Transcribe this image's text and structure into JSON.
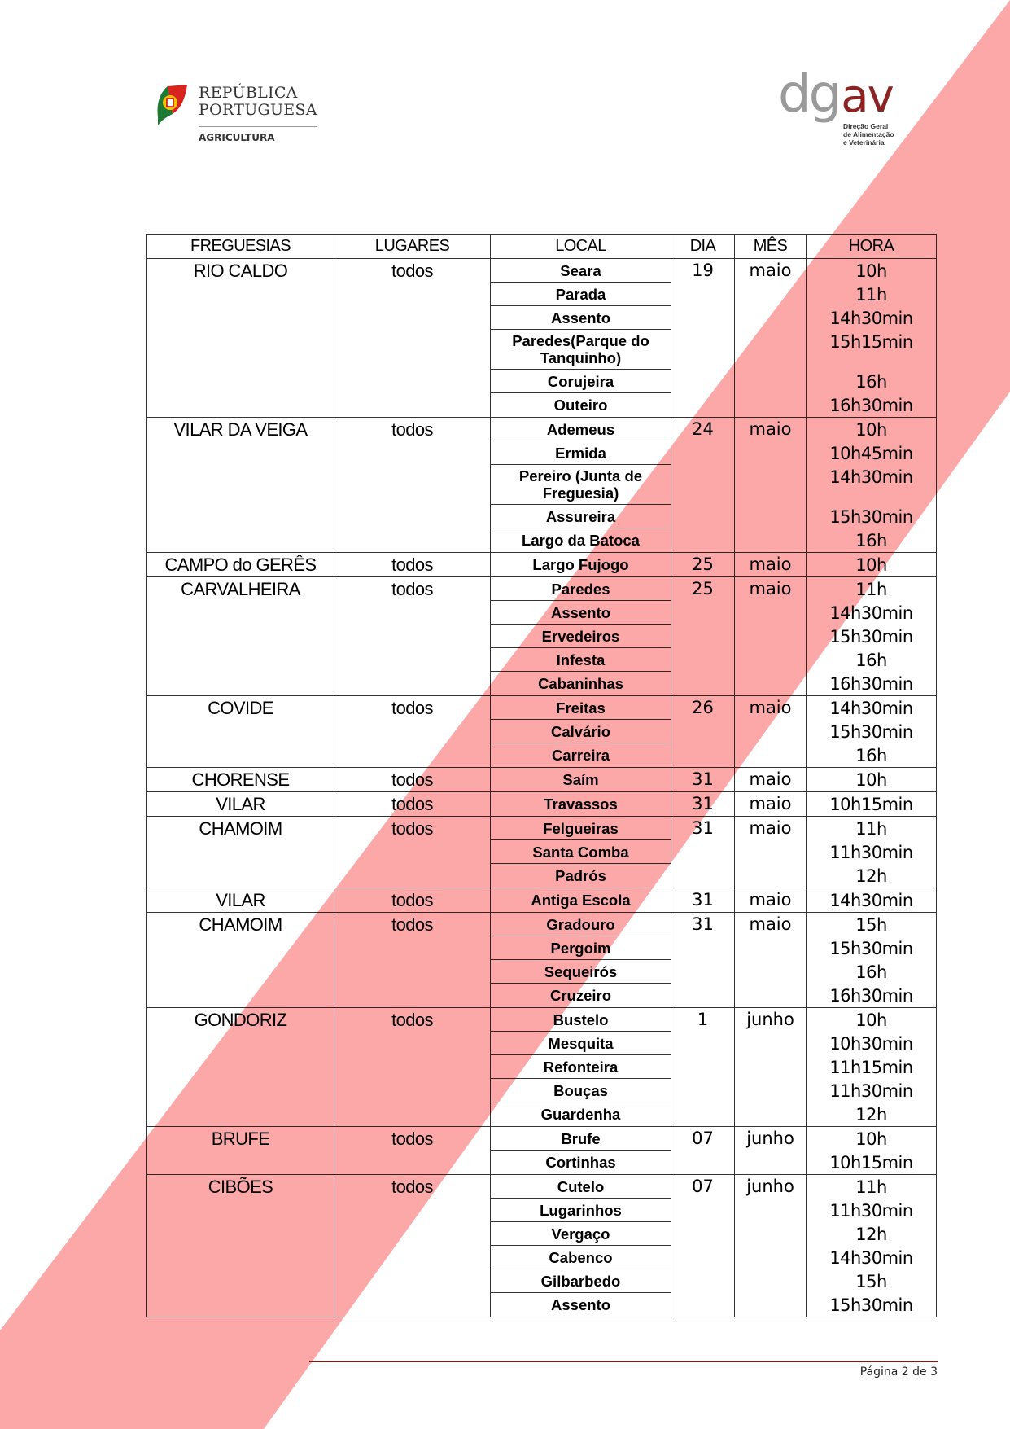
{
  "header": {
    "left_logo": {
      "line1": "REPÚBLICA",
      "line2": "PORTUGUESA",
      "sub": "AGRICULTURA"
    },
    "right_logo": {
      "mark_grey": "dg",
      "mark_red": "av",
      "sub1": "Direção Geral",
      "sub2": "de Alimentação",
      "sub3": "e Veterinária"
    }
  },
  "table": {
    "columns": [
      "FREGUESIAS",
      "LUGARES",
      "LOCAL",
      "DIA",
      "MÊS",
      "HORA"
    ],
    "groups": [
      {
        "freguesia": "RIO CALDO",
        "lugares": "todos",
        "dia": "19",
        "mes": "maio",
        "rows": [
          {
            "local": "Seara",
            "hora": "10h"
          },
          {
            "local": "Parada",
            "hora": "11h"
          },
          {
            "local": "Assento",
            "hora": "14h30min"
          },
          {
            "local": "Paredes(Parque do Tanquinho)",
            "hora": "15h15min",
            "double": true
          },
          {
            "local": "Corujeira",
            "hora": "16h"
          },
          {
            "local": "Outeiro",
            "hora": "16h30min"
          }
        ]
      },
      {
        "freguesia": "VILAR DA VEIGA",
        "lugares": "todos",
        "dia": "24",
        "mes": "maio",
        "rows": [
          {
            "local": "Ademeus",
            "hora": "10h"
          },
          {
            "local": "Ermida",
            "hora": "10h45min"
          },
          {
            "local": "Pereiro (Junta de Freguesia)",
            "hora": "14h30min",
            "double": true
          },
          {
            "local": "Assureira",
            "hora": "15h30min"
          },
          {
            "local": "Largo da Batoca",
            "hora": "16h"
          }
        ]
      },
      {
        "freguesia": "CAMPO do GERÊS",
        "lugares": "todos",
        "dia": "25",
        "mes": "maio",
        "rows": [
          {
            "local": "Largo Fujogo",
            "hora": "10h"
          }
        ]
      },
      {
        "freguesia": "CARVALHEIRA",
        "lugares": "todos",
        "dia": "25",
        "mes": "maio",
        "rows": [
          {
            "local": "Paredes",
            "hora": "11h"
          },
          {
            "local": "Assento",
            "hora": "14h30min"
          },
          {
            "local": "Ervedeiros",
            "hora": "15h30min"
          },
          {
            "local": "Infesta",
            "hora": "16h"
          },
          {
            "local": "Cabaninhas",
            "hora": "16h30min"
          }
        ]
      },
      {
        "freguesia": "COVIDE",
        "lugares": "todos",
        "dia": "26",
        "mes": "maio",
        "rows": [
          {
            "local": "Freitas",
            "hora": "14h30min"
          },
          {
            "local": "Calvário",
            "hora": "15h30min"
          },
          {
            "local": "Carreira",
            "hora": "16h"
          }
        ]
      },
      {
        "freguesia": "CHORENSE",
        "lugares": "todos",
        "dia": "31",
        "mes": "maio",
        "rows": [
          {
            "local": "Saím",
            "hora": "10h"
          }
        ]
      },
      {
        "freguesia": "VILAR",
        "lugares": "todos",
        "dia": "31",
        "mes": "maio",
        "rows": [
          {
            "local": "Travassos",
            "hora": "10h15min"
          }
        ]
      },
      {
        "freguesia": "CHAMOIM",
        "lugares": "todos",
        "dia": "31",
        "mes": "maio",
        "rows": [
          {
            "local": "Felgueiras",
            "hora": "11h"
          },
          {
            "local": "Santa Comba",
            "hora": "11h30min"
          },
          {
            "local": "Padrós",
            "hora": "12h"
          }
        ]
      },
      {
        "freguesia": "VILAR",
        "lugares": "todos",
        "dia": "31",
        "mes": "maio",
        "rows": [
          {
            "local": "Antiga Escola",
            "hora": "14h30min"
          }
        ]
      },
      {
        "freguesia": "CHAMOIM",
        "lugares": "todos",
        "dia": "31",
        "mes": "maio",
        "rows": [
          {
            "local": "Gradouro",
            "hora": "15h"
          },
          {
            "local": "Pergoim",
            "hora": "15h30min"
          },
          {
            "local": "Sequeirós",
            "hora": "16h"
          },
          {
            "local": "Cruzeiro",
            "hora": "16h30min"
          }
        ]
      },
      {
        "freguesia": "GONDORIZ",
        "lugares": "todos",
        "dia": "1",
        "mes": "junho",
        "rows": [
          {
            "local": "Bustelo",
            "hora": "10h"
          },
          {
            "local": "Mesquita",
            "hora": "10h30min"
          },
          {
            "local": "Refonteira",
            "hora": "11h15min"
          },
          {
            "local": "Bouças",
            "hora": "11h30min"
          },
          {
            "local": "Guardenha",
            "hora": "12h"
          }
        ]
      },
      {
        "freguesia": "BRUFE",
        "lugares": "todos",
        "dia": "07",
        "mes": "junho",
        "rows": [
          {
            "local": "Brufe",
            "hora": "10h"
          },
          {
            "local": "Cortinhas",
            "hora": "10h15min"
          }
        ]
      },
      {
        "freguesia": "CIBÕES",
        "lugares": "todos",
        "dia": "07",
        "mes": "junho",
        "rows": [
          {
            "local": "Cutelo",
            "hora": "11h"
          },
          {
            "local": "Lugarinhos",
            "hora": "11h30min"
          },
          {
            "local": "Vergaço",
            "hora": "12h"
          },
          {
            "local": "Cabenco",
            "hora": "14h30min"
          },
          {
            "local": "Gilbarbedo",
            "hora": "15h"
          },
          {
            "local": "Assento",
            "hora": "15h30min"
          }
        ]
      }
    ]
  },
  "footer": {
    "page_label": "Página 2 de 3"
  },
  "colors": {
    "band": "#FCA8A8",
    "brand_red": "#8b2323",
    "footer_rule": "#7a1a1a"
  }
}
